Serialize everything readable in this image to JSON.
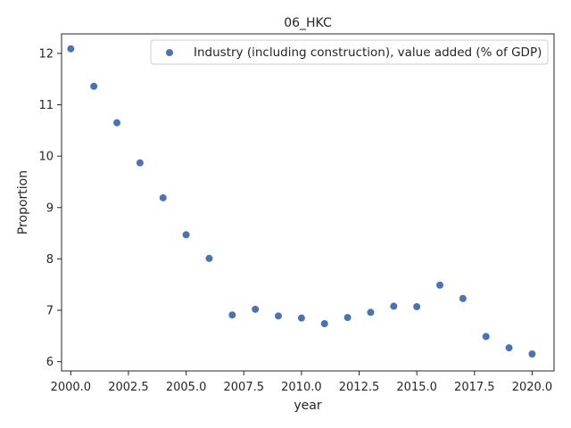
{
  "chart_data": {
    "type": "scatter",
    "title": "06_HKC",
    "xlabel": "year",
    "ylabel": "Proportion",
    "xlim": [
      1999.6,
      2020.95
    ],
    "ylim": [
      5.82,
      12.38
    ],
    "xticks": [
      2000.0,
      2002.5,
      2005.0,
      2007.5,
      2010.0,
      2012.5,
      2015.0,
      2017.5,
      2020.0
    ],
    "xtick_labels": [
      "2000.0",
      "2002.5",
      "2005.0",
      "2007.5",
      "2010.0",
      "2012.5",
      "2015.0",
      "2017.5",
      "2020.0"
    ],
    "yticks": [
      6,
      7,
      8,
      9,
      10,
      11,
      12
    ],
    "ytick_labels": [
      "6",
      "7",
      "8",
      "9",
      "10",
      "11",
      "12"
    ],
    "grid": false,
    "legend_position": "top-right",
    "series": [
      {
        "name": "Industry (including construction), value added (% of GDP)",
        "color": "#4c72b0",
        "x": [
          2000,
          2001,
          2002,
          2003,
          2004,
          2005,
          2006,
          2007,
          2008,
          2009,
          2010,
          2011,
          2012,
          2013,
          2014,
          2015,
          2016,
          2017,
          2018,
          2019,
          2020
        ],
        "y": [
          12.09,
          11.36,
          10.65,
          9.87,
          9.19,
          8.47,
          8.01,
          6.91,
          7.02,
          6.89,
          6.85,
          6.74,
          6.86,
          6.96,
          7.08,
          7.07,
          7.49,
          7.23,
          6.49,
          6.27,
          6.15
        ]
      }
    ]
  }
}
